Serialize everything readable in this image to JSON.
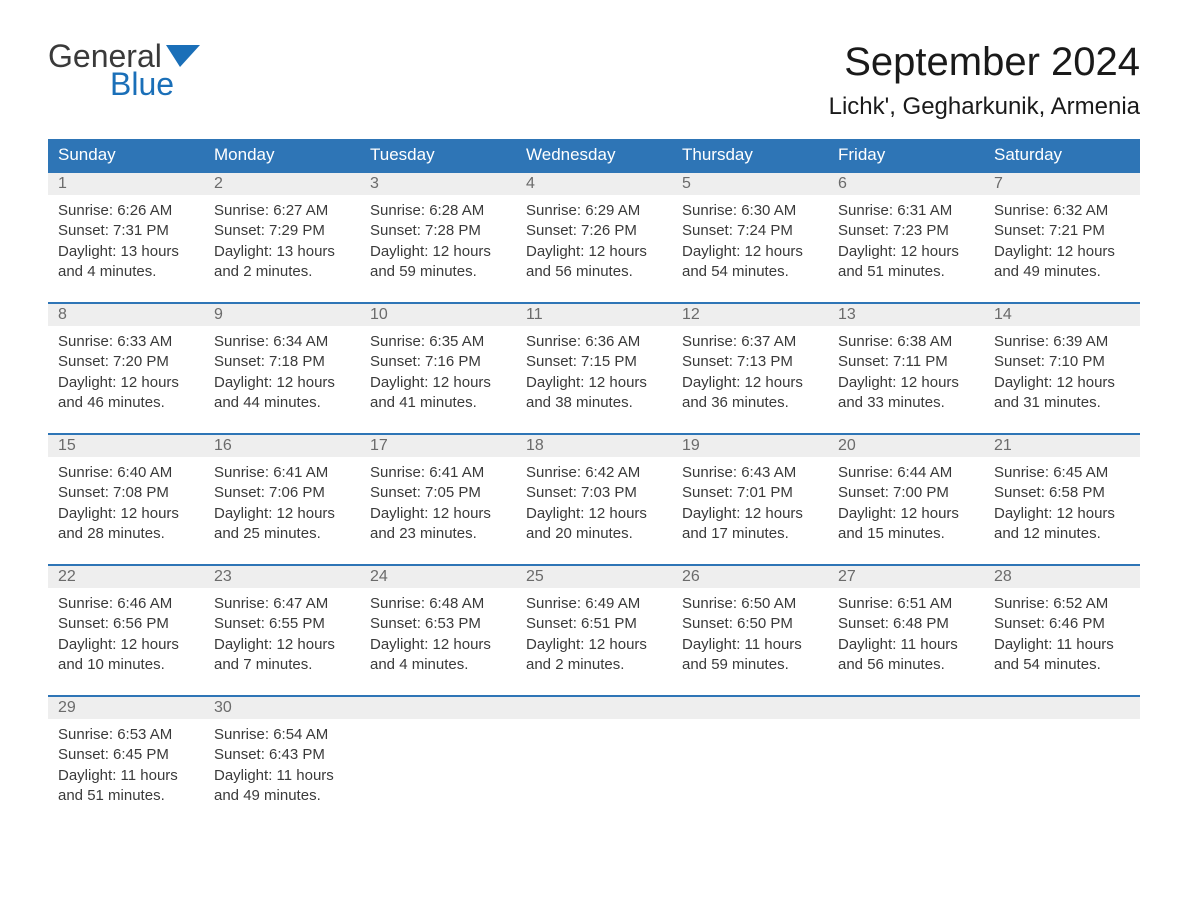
{
  "brand": {
    "word1": "General",
    "word2": "Blue",
    "word1_color": "#3a3a3a",
    "word2_color": "#1a6fb8",
    "flag_color": "#1a6fb8"
  },
  "title": "September 2024",
  "location": "Lichk', Gegharkunik, Armenia",
  "colors": {
    "header_bg": "#2e75b6",
    "header_text": "#ffffff",
    "daynum_bg": "#eeeeee",
    "daynum_border": "#2e75b6",
    "daynum_text": "#6b6b6b",
    "body_text": "#3a3a3a",
    "page_bg": "#ffffff"
  },
  "fonts": {
    "title_size": 40,
    "location_size": 24,
    "th_size": 17,
    "cell_size": 15,
    "logo_size": 32
  },
  "weekdays": [
    "Sunday",
    "Monday",
    "Tuesday",
    "Wednesday",
    "Thursday",
    "Friday",
    "Saturday"
  ],
  "weeks": [
    [
      {
        "n": "1",
        "sr": "6:26 AM",
        "ss": "7:31 PM",
        "dl": "13 hours and 4 minutes."
      },
      {
        "n": "2",
        "sr": "6:27 AM",
        "ss": "7:29 PM",
        "dl": "13 hours and 2 minutes."
      },
      {
        "n": "3",
        "sr": "6:28 AM",
        "ss": "7:28 PM",
        "dl": "12 hours and 59 minutes."
      },
      {
        "n": "4",
        "sr": "6:29 AM",
        "ss": "7:26 PM",
        "dl": "12 hours and 56 minutes."
      },
      {
        "n": "5",
        "sr": "6:30 AM",
        "ss": "7:24 PM",
        "dl": "12 hours and 54 minutes."
      },
      {
        "n": "6",
        "sr": "6:31 AM",
        "ss": "7:23 PM",
        "dl": "12 hours and 51 minutes."
      },
      {
        "n": "7",
        "sr": "6:32 AM",
        "ss": "7:21 PM",
        "dl": "12 hours and 49 minutes."
      }
    ],
    [
      {
        "n": "8",
        "sr": "6:33 AM",
        "ss": "7:20 PM",
        "dl": "12 hours and 46 minutes."
      },
      {
        "n": "9",
        "sr": "6:34 AM",
        "ss": "7:18 PM",
        "dl": "12 hours and 44 minutes."
      },
      {
        "n": "10",
        "sr": "6:35 AM",
        "ss": "7:16 PM",
        "dl": "12 hours and 41 minutes."
      },
      {
        "n": "11",
        "sr": "6:36 AM",
        "ss": "7:15 PM",
        "dl": "12 hours and 38 minutes."
      },
      {
        "n": "12",
        "sr": "6:37 AM",
        "ss": "7:13 PM",
        "dl": "12 hours and 36 minutes."
      },
      {
        "n": "13",
        "sr": "6:38 AM",
        "ss": "7:11 PM",
        "dl": "12 hours and 33 minutes."
      },
      {
        "n": "14",
        "sr": "6:39 AM",
        "ss": "7:10 PM",
        "dl": "12 hours and 31 minutes."
      }
    ],
    [
      {
        "n": "15",
        "sr": "6:40 AM",
        "ss": "7:08 PM",
        "dl": "12 hours and 28 minutes."
      },
      {
        "n": "16",
        "sr": "6:41 AM",
        "ss": "7:06 PM",
        "dl": "12 hours and 25 minutes."
      },
      {
        "n": "17",
        "sr": "6:41 AM",
        "ss": "7:05 PM",
        "dl": "12 hours and 23 minutes."
      },
      {
        "n": "18",
        "sr": "6:42 AM",
        "ss": "7:03 PM",
        "dl": "12 hours and 20 minutes."
      },
      {
        "n": "19",
        "sr": "6:43 AM",
        "ss": "7:01 PM",
        "dl": "12 hours and 17 minutes."
      },
      {
        "n": "20",
        "sr": "6:44 AM",
        "ss": "7:00 PM",
        "dl": "12 hours and 15 minutes."
      },
      {
        "n": "21",
        "sr": "6:45 AM",
        "ss": "6:58 PM",
        "dl": "12 hours and 12 minutes."
      }
    ],
    [
      {
        "n": "22",
        "sr": "6:46 AM",
        "ss": "6:56 PM",
        "dl": "12 hours and 10 minutes."
      },
      {
        "n": "23",
        "sr": "6:47 AM",
        "ss": "6:55 PM",
        "dl": "12 hours and 7 minutes."
      },
      {
        "n": "24",
        "sr": "6:48 AM",
        "ss": "6:53 PM",
        "dl": "12 hours and 4 minutes."
      },
      {
        "n": "25",
        "sr": "6:49 AM",
        "ss": "6:51 PM",
        "dl": "12 hours and 2 minutes."
      },
      {
        "n": "26",
        "sr": "6:50 AM",
        "ss": "6:50 PM",
        "dl": "11 hours and 59 minutes."
      },
      {
        "n": "27",
        "sr": "6:51 AM",
        "ss": "6:48 PM",
        "dl": "11 hours and 56 minutes."
      },
      {
        "n": "28",
        "sr": "6:52 AM",
        "ss": "6:46 PM",
        "dl": "11 hours and 54 minutes."
      }
    ],
    [
      {
        "n": "29",
        "sr": "6:53 AM",
        "ss": "6:45 PM",
        "dl": "11 hours and 51 minutes."
      },
      {
        "n": "30",
        "sr": "6:54 AM",
        "ss": "6:43 PM",
        "dl": "11 hours and 49 minutes."
      },
      null,
      null,
      null,
      null,
      null
    ]
  ],
  "labels": {
    "sunrise": "Sunrise:",
    "sunset": "Sunset:",
    "daylight": "Daylight:"
  }
}
